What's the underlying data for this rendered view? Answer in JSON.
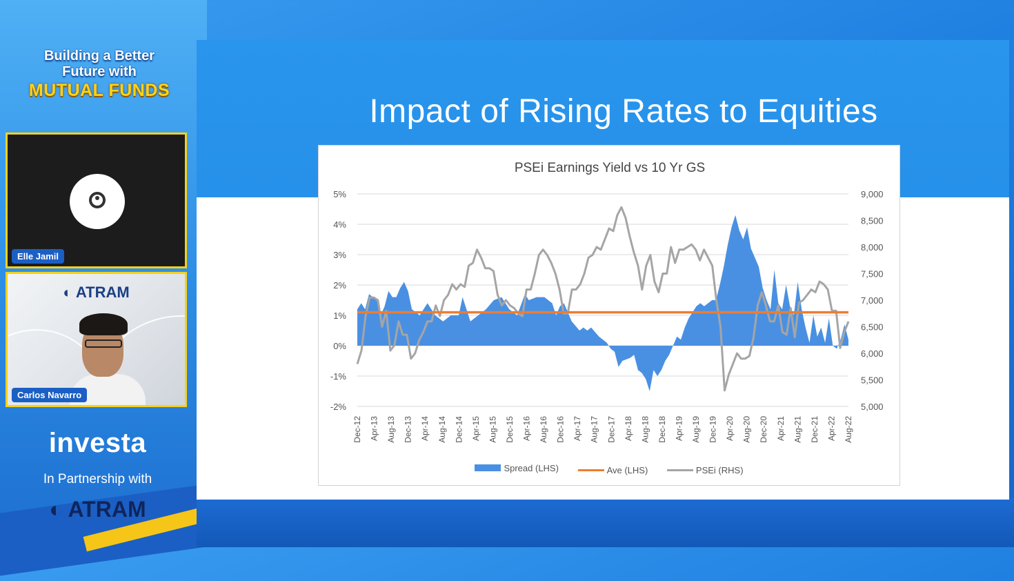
{
  "branding": {
    "line1": "Building a Better",
    "line2": "Future with",
    "line3": "MUTUAL FUNDS"
  },
  "participants": [
    {
      "name": "Elle Jamil",
      "video": "off"
    },
    {
      "name": "Carlos Navarro",
      "video": "on",
      "background_logo": "ATRAM"
    }
  ],
  "sponsor": {
    "investa": "investa",
    "partnership": "In Partnership with",
    "atram": "ATRAM"
  },
  "slide": {
    "title": "Impact of Rising Rates to Equities"
  },
  "colors": {
    "spread": "#4a90e2",
    "ave": "#ed7d31",
    "psei": "#a5a5a5",
    "accent": "#f4d21b"
  },
  "chart_data": {
    "type": "line",
    "title": "PSEi Earnings Yield vs 10 Yr GS",
    "left_axis": {
      "ylim": [
        -0.02,
        0.05
      ],
      "ticks": [
        "5%",
        "4%",
        "3%",
        "2%",
        "1%",
        "0%",
        "-1%",
        "-2%"
      ]
    },
    "right_axis": {
      "ylim": [
        5000,
        9000
      ],
      "ticks": [
        "9,000",
        "8,500",
        "8,000",
        "7,500",
        "7,000",
        "6,500",
        "6,000",
        "5,500",
        "5,000"
      ]
    },
    "x_tick_labels": [
      "Dec-12",
      "Apr-13",
      "Aug-13",
      "Dec-13",
      "Apr-14",
      "Aug-14",
      "Dec-14",
      "Apr-15",
      "Aug-15",
      "Dec-15",
      "Apr-16",
      "Aug-16",
      "Dec-16",
      "Apr-17",
      "Aug-17",
      "Dec-17",
      "Apr-18",
      "Aug-18",
      "Dec-18",
      "Apr-19",
      "Aug-19",
      "Dec-19",
      "Apr-20",
      "Aug-20",
      "Dec-20",
      "Apr-21",
      "Aug-21",
      "Dec-21",
      "Apr-22",
      "Aug-22"
    ],
    "x_months": 117,
    "series": [
      {
        "name": "Spread (LHS)",
        "kind": "area",
        "axis": "left",
        "points": [
          [
            0,
            1.2
          ],
          [
            1,
            1.4
          ],
          [
            2,
            1.2
          ],
          [
            3,
            1.7
          ],
          [
            4,
            1.6
          ],
          [
            5,
            1.5
          ],
          [
            6,
            1.0
          ],
          [
            7,
            1.3
          ],
          [
            8,
            1.8
          ],
          [
            9,
            1.6
          ],
          [
            10,
            1.6
          ],
          [
            11,
            1.9
          ],
          [
            12,
            2.1
          ],
          [
            13,
            1.8
          ],
          [
            14,
            1.2
          ],
          [
            16,
            1.0
          ],
          [
            18,
            1.4
          ],
          [
            19,
            1.2
          ],
          [
            20,
            1.0
          ],
          [
            22,
            0.8
          ],
          [
            24,
            1.0
          ],
          [
            26,
            1.0
          ],
          [
            27,
            1.6
          ],
          [
            29,
            0.8
          ],
          [
            31,
            1.0
          ],
          [
            33,
            1.2
          ],
          [
            35,
            1.5
          ],
          [
            37,
            1.6
          ],
          [
            39,
            1.2
          ],
          [
            41,
            1.0
          ],
          [
            43,
            1.7
          ],
          [
            44,
            1.5
          ],
          [
            46,
            1.6
          ],
          [
            48,
            1.6
          ],
          [
            50,
            1.4
          ],
          [
            51,
            1.0
          ],
          [
            52,
            1.3
          ],
          [
            53,
            1.4
          ],
          [
            55,
            0.8
          ],
          [
            57,
            0.5
          ],
          [
            58,
            0.6
          ],
          [
            59,
            0.5
          ],
          [
            60,
            0.6
          ],
          [
            62,
            0.3
          ],
          [
            64,
            0.1
          ],
          [
            65,
            -0.1
          ],
          [
            66,
            -0.2
          ],
          [
            67,
            -0.7
          ],
          [
            68,
            -0.5
          ],
          [
            70,
            -0.4
          ],
          [
            71,
            -0.3
          ],
          [
            72,
            -0.8
          ],
          [
            73,
            -0.9
          ],
          [
            74,
            -1.1
          ],
          [
            75,
            -1.5
          ],
          [
            76,
            -0.8
          ],
          [
            77,
            -1.0
          ],
          [
            78,
            -0.8
          ],
          [
            79,
            -0.5
          ],
          [
            80,
            -0.3
          ],
          [
            81,
            0.0
          ],
          [
            82,
            0.3
          ],
          [
            83,
            0.2
          ],
          [
            84,
            0.6
          ],
          [
            85,
            0.9
          ],
          [
            86,
            1.1
          ],
          [
            87,
            1.3
          ],
          [
            88,
            1.4
          ],
          [
            89,
            1.3
          ],
          [
            90,
            1.4
          ],
          [
            91,
            1.5
          ],
          [
            92,
            1.5
          ],
          [
            93,
            2.0
          ],
          [
            94,
            2.6
          ],
          [
            95,
            3.3
          ],
          [
            96,
            3.9
          ],
          [
            97,
            4.3
          ],
          [
            98,
            3.8
          ],
          [
            99,
            3.5
          ],
          [
            100,
            3.9
          ],
          [
            101,
            3.2
          ],
          [
            102,
            2.9
          ],
          [
            103,
            2.6
          ],
          [
            104,
            1.9
          ],
          [
            105,
            1.5
          ],
          [
            106,
            1.2
          ],
          [
            107,
            2.5
          ],
          [
            108,
            1.4
          ],
          [
            109,
            1.2
          ],
          [
            110,
            2.0
          ],
          [
            111,
            1.3
          ],
          [
            112,
            1.0
          ],
          [
            113,
            2.1
          ],
          [
            114,
            1.2
          ],
          [
            115,
            0.6
          ],
          [
            116,
            0.1
          ],
          [
            117,
            1.0
          ],
          [
            118,
            0.3
          ],
          [
            119,
            0.6
          ],
          [
            120,
            0.1
          ],
          [
            121,
            0.9
          ],
          [
            122,
            0.0
          ],
          [
            123,
            -0.1
          ],
          [
            124,
            0.2
          ],
          [
            125,
            0.7
          ],
          [
            126,
            0.2
          ]
        ]
      },
      {
        "name": "Ave (LHS)",
        "kind": "line",
        "axis": "left",
        "value": 1.1
      },
      {
        "name": "PSEi (RHS)",
        "kind": "line",
        "axis": "right",
        "points": [
          [
            0,
            5800
          ],
          [
            1,
            6050
          ],
          [
            2,
            6700
          ],
          [
            3,
            7050
          ],
          [
            4,
            7050
          ],
          [
            5,
            7000
          ],
          [
            6,
            6500
          ],
          [
            7,
            6800
          ],
          [
            8,
            6050
          ],
          [
            9,
            6150
          ],
          [
            10,
            6600
          ],
          [
            11,
            6350
          ],
          [
            12,
            6350
          ],
          [
            13,
            5900
          ],
          [
            14,
            6000
          ],
          [
            15,
            6250
          ],
          [
            16,
            6400
          ],
          [
            17,
            6600
          ],
          [
            18,
            6600
          ],
          [
            19,
            6900
          ],
          [
            20,
            6700
          ],
          [
            21,
            7000
          ],
          [
            22,
            7100
          ],
          [
            23,
            7300
          ],
          [
            24,
            7200
          ],
          [
            25,
            7300
          ],
          [
            26,
            7250
          ],
          [
            27,
            7650
          ],
          [
            28,
            7700
          ],
          [
            29,
            7950
          ],
          [
            30,
            7800
          ],
          [
            31,
            7600
          ],
          [
            32,
            7600
          ],
          [
            33,
            7550
          ],
          [
            34,
            7100
          ],
          [
            35,
            6900
          ],
          [
            36,
            7000
          ],
          [
            37,
            6900
          ],
          [
            38,
            6850
          ],
          [
            39,
            6750
          ],
          [
            40,
            6700
          ],
          [
            41,
            7200
          ],
          [
            42,
            7200
          ],
          [
            43,
            7500
          ],
          [
            44,
            7850
          ],
          [
            45,
            7950
          ],
          [
            46,
            7850
          ],
          [
            47,
            7700
          ],
          [
            48,
            7500
          ],
          [
            49,
            7200
          ],
          [
            50,
            6750
          ],
          [
            51,
            6750
          ],
          [
            52,
            7200
          ],
          [
            53,
            7200
          ],
          [
            54,
            7300
          ],
          [
            55,
            7500
          ],
          [
            56,
            7800
          ],
          [
            57,
            7850
          ],
          [
            58,
            8000
          ],
          [
            59,
            7950
          ],
          [
            60,
            8150
          ],
          [
            61,
            8350
          ],
          [
            62,
            8300
          ],
          [
            63,
            8600
          ],
          [
            64,
            8750
          ],
          [
            65,
            8550
          ],
          [
            66,
            8200
          ],
          [
            67,
            7900
          ],
          [
            68,
            7650
          ],
          [
            69,
            7200
          ],
          [
            70,
            7650
          ],
          [
            71,
            7850
          ],
          [
            72,
            7350
          ],
          [
            73,
            7150
          ],
          [
            74,
            7500
          ],
          [
            75,
            7500
          ],
          [
            76,
            8000
          ],
          [
            77,
            7700
          ],
          [
            78,
            7950
          ],
          [
            79,
            7950
          ],
          [
            80,
            8000
          ],
          [
            81,
            8050
          ],
          [
            82,
            7950
          ],
          [
            83,
            7750
          ],
          [
            84,
            7950
          ],
          [
            85,
            7800
          ],
          [
            86,
            7650
          ],
          [
            87,
            7000
          ],
          [
            88,
            6500
          ],
          [
            89,
            5300
          ],
          [
            90,
            5600
          ],
          [
            91,
            5800
          ],
          [
            92,
            6000
          ],
          [
            93,
            5900
          ],
          [
            94,
            5900
          ],
          [
            95,
            5950
          ],
          [
            96,
            6300
          ],
          [
            97,
            6900
          ],
          [
            98,
            7150
          ],
          [
            99,
            6900
          ],
          [
            100,
            6600
          ],
          [
            101,
            6600
          ],
          [
            102,
            6900
          ],
          [
            103,
            6400
          ],
          [
            104,
            6350
          ],
          [
            105,
            6850
          ],
          [
            106,
            6300
          ],
          [
            107,
            6950
          ],
          [
            108,
            7000
          ],
          [
            109,
            7100
          ],
          [
            110,
            7200
          ],
          [
            111,
            7150
          ],
          [
            112,
            7350
          ],
          [
            113,
            7300
          ],
          [
            114,
            7200
          ],
          [
            115,
            6800
          ],
          [
            116,
            6800
          ],
          [
            117,
            6100
          ],
          [
            118,
            6400
          ],
          [
            119,
            6600
          ]
        ]
      }
    ]
  }
}
